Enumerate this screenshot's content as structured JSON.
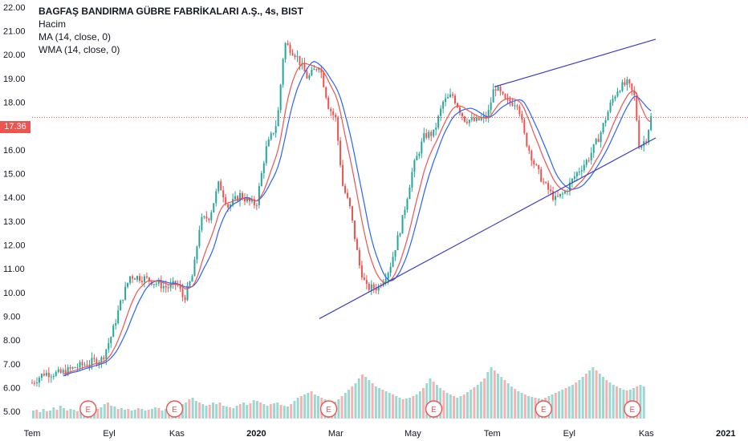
{
  "legend": {
    "symbol_title": "BAGFAŞ BANDIRMA GÜBRE FABRİKALARI A.Ş., 4s, BIST",
    "volume_label": "Hacim",
    "ma_label": "MA (14, close, 0)",
    "wma_label": "WMA (14, close, 0)"
  },
  "current_price": "17.36",
  "earnings_marker": "E",
  "colors": {
    "up": "#26a69a",
    "down": "#ef5350",
    "ma": "#2962ff",
    "wma": "#ef5350",
    "trendline": "#3f3fbf",
    "price_line": "#ef5350"
  },
  "chart_data": {
    "type": "candlestick",
    "y_ticks": [
      "22.00",
      "21.00",
      "20.00",
      "19.00",
      "18.00",
      "17.00",
      "16.00",
      "15.00",
      "14.00",
      "13.00",
      "12.00",
      "11.00",
      "10.00",
      "9.00",
      "8.00",
      "7.00",
      "6.00",
      "5.00"
    ],
    "ylim": [
      4.7,
      22.3
    ],
    "x_ticks": [
      "Tem",
      "Eyl",
      "Kas",
      "2020",
      "Mar",
      "May",
      "Tem",
      "Eyl",
      "Kas",
      "2021"
    ],
    "x_tick_bold": [
      "2020",
      "2021"
    ],
    "x_domain": [
      0,
      30
    ],
    "x_tick_positions": [
      0,
      3.3,
      6.2,
      9.6,
      13.0,
      16.3,
      19.7,
      23.0,
      26.3,
      29.7
    ],
    "price_path": [
      [
        0,
        6.2
      ],
      [
        0.5,
        6.6
      ],
      [
        1.2,
        6.6
      ],
      [
        2,
        6.9
      ],
      [
        2.6,
        7.1
      ],
      [
        3,
        7.2
      ],
      [
        3.4,
        8.2
      ],
      [
        3.8,
        9.6
      ],
      [
        4.2,
        10.7
      ],
      [
        4.8,
        10.6
      ],
      [
        5.3,
        10.4
      ],
      [
        5.8,
        10.2
      ],
      [
        6.2,
        10.4
      ],
      [
        6.5,
        9.7
      ],
      [
        6.9,
        10.8
      ],
      [
        7.2,
        13.0
      ],
      [
        7.6,
        13.2
      ],
      [
        8.0,
        14.6
      ],
      [
        8.4,
        13.6
      ],
      [
        8.9,
        14.1
      ],
      [
        9.3,
        13.8
      ],
      [
        9.6,
        13.7
      ],
      [
        10.0,
        16.0
      ],
      [
        10.5,
        17.2
      ],
      [
        10.8,
        20.5
      ],
      [
        11.3,
        20.0
      ],
      [
        11.8,
        19.0
      ],
      [
        12.3,
        19.6
      ],
      [
        12.7,
        17.8
      ],
      [
        13.0,
        17.3
      ],
      [
        13.3,
        14.5
      ],
      [
        13.6,
        13.6
      ],
      [
        14.0,
        11.2
      ],
      [
        14.3,
        10.2
      ],
      [
        14.8,
        10.2
      ],
      [
        15.3,
        11.0
      ],
      [
        15.8,
        12.8
      ],
      [
        16.3,
        15.2
      ],
      [
        16.8,
        16.6
      ],
      [
        17.2,
        16.7
      ],
      [
        17.6,
        18.0
      ],
      [
        18.0,
        18.3
      ],
      [
        18.5,
        17.3
      ],
      [
        19.0,
        17.2
      ],
      [
        19.5,
        17.4
      ],
      [
        19.8,
        18.7
      ],
      [
        20.3,
        18.0
      ],
      [
        20.8,
        18.0
      ],
      [
        21.1,
        16.5
      ],
      [
        21.5,
        15.4
      ],
      [
        21.9,
        14.6
      ],
      [
        22.4,
        13.9
      ],
      [
        22.8,
        14.2
      ],
      [
        23.3,
        15.0
      ],
      [
        23.8,
        15.6
      ],
      [
        24.3,
        16.6
      ],
      [
        24.8,
        18.0
      ],
      [
        25.1,
        18.6
      ],
      [
        25.5,
        18.8
      ],
      [
        25.8,
        18.2
      ],
      [
        26.0,
        16.1
      ],
      [
        26.3,
        16.5
      ],
      [
        26.5,
        17.36
      ]
    ],
    "volume": {
      "ylim": [
        0,
        13
      ],
      "values": [
        1.0,
        1.1,
        0.8,
        1.2,
        0.9,
        1.0,
        1.4,
        1.1,
        1.6,
        1.3,
        1.0,
        1.2,
        1.1,
        0.9,
        1.0,
        1.2,
        1.3,
        1.1,
        1.0,
        1.2,
        1.4,
        1.8,
        2.0,
        1.6,
        1.5,
        1.2,
        1.3,
        1.1,
        1.2,
        1.0,
        1.1,
        1.3,
        1.2,
        1.0,
        1.1,
        1.2,
        1.4,
        1.3,
        1.0,
        1.2,
        1.3,
        1.5,
        1.4,
        1.6,
        1.8,
        2.0,
        2.4,
        2.6,
        2.2,
        2.0,
        1.8,
        1.6,
        1.7,
        2.0,
        1.8,
        2.0,
        1.6,
        1.5,
        1.4,
        1.3,
        1.6,
        1.8,
        2.0,
        1.7,
        1.9,
        2.3,
        2.2,
        2.0,
        1.8,
        1.6,
        1.8,
        1.9,
        2.0,
        1.7,
        1.6,
        1.5,
        1.8,
        2.2,
        2.6,
        2.8,
        3.0,
        3.2,
        3.4,
        3.0,
        2.8,
        2.6,
        2.4,
        2.2,
        2.0,
        2.1,
        2.4,
        2.8,
        3.2,
        3.6,
        4.0,
        4.4,
        5.0,
        5.5,
        5.2,
        4.8,
        4.4,
        4.0,
        3.8,
        3.6,
        3.4,
        3.2,
        3.0,
        2.8,
        2.6,
        2.4,
        2.5,
        2.6,
        2.8,
        3.0,
        3.4,
        3.8,
        4.4,
        5.0,
        4.6,
        4.2,
        3.8,
        3.5,
        3.2,
        3.0,
        2.8,
        2.6,
        2.8,
        3.0,
        3.3,
        3.6,
        3.9,
        4.2,
        4.6,
        5.0,
        5.8,
        6.4,
        6.0,
        5.6,
        5.2,
        4.8,
        4.4,
        4.0,
        3.7,
        3.4,
        3.2,
        3.0,
        2.8,
        2.7,
        2.6,
        2.5,
        2.4,
        2.6,
        2.8,
        3.0,
        3.2,
        3.4,
        3.6,
        3.8,
        4.0,
        4.2,
        4.5,
        4.8,
        5.2,
        5.6,
        6.0,
        6.4,
        6.0,
        5.6,
        5.2,
        4.8,
        4.5,
        4.2,
        4.0,
        3.8,
        3.6,
        3.5,
        3.6,
        3.8,
        4.0,
        4.2,
        4.0
      ]
    },
    "trendlines": [
      {
        "name": "lower-support",
        "x1": 12.3,
        "y1": 8.9,
        "x2": 26.7,
        "y2": 16.5
      },
      {
        "name": "upper-resistance",
        "x1": 19.8,
        "y1": 18.65,
        "x2": 26.7,
        "y2": 20.65
      }
    ],
    "earnings_dates": [
      2.4,
      6.1,
      12.7,
      17.2,
      21.9,
      25.7
    ],
    "current_price": 17.36
  }
}
